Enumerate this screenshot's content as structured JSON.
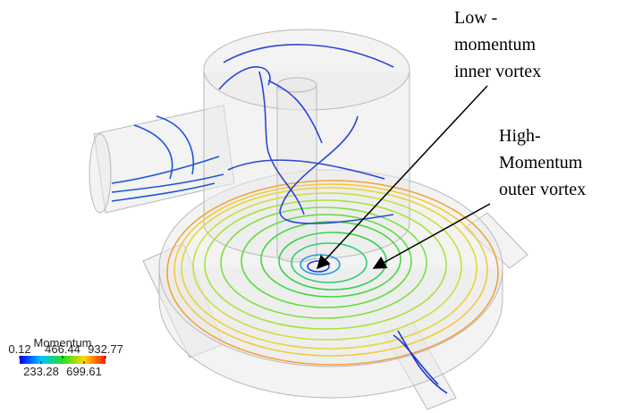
{
  "colorbar": {
    "title": "Momentum",
    "lim": [
      0.12,
      932.77
    ],
    "ticks": [
      0.12,
      233.28,
      466.44,
      699.61,
      932.77
    ]
  },
  "annotations": [
    {
      "lines": [
        "Low -",
        "momentum",
        "inner vortex"
      ]
    },
    {
      "lines": [
        "High-",
        "Momentum",
        "outer vortex"
      ]
    }
  ]
}
